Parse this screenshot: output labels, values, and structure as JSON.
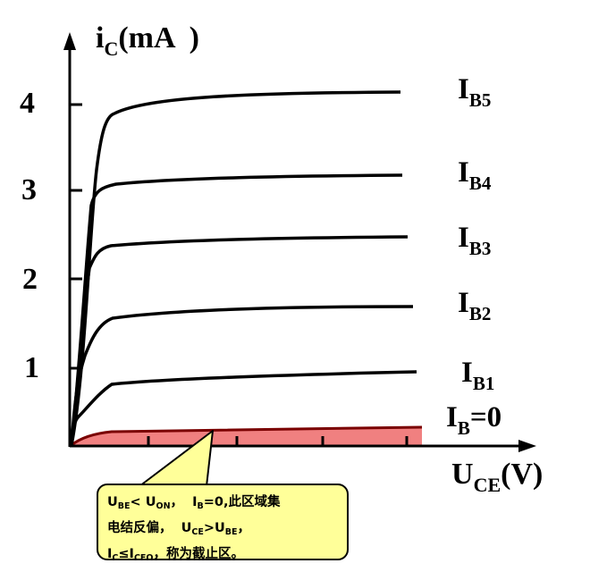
{
  "y_axis": {
    "label_main": "i",
    "label_sub": "C",
    "label_unit": "(mA  )",
    "ticks": [
      "4",
      "3",
      "2",
      "1"
    ],
    "tick_values": [
      4,
      3,
      2,
      1
    ]
  },
  "x_axis": {
    "label_main": "U",
    "label_sub": "CE",
    "label_unit": "(V)"
  },
  "curves": [
    {
      "main": "I",
      "sub": "B5",
      "suffix": "",
      "saturation": 4.1
    },
    {
      "main": "I",
      "sub": "B4",
      "suffix": "",
      "saturation": 3.15
    },
    {
      "main": "I",
      "sub": "B3",
      "suffix": "",
      "saturation": 2.45
    },
    {
      "main": "I",
      "sub": "B2",
      "suffix": "",
      "saturation": 1.7
    },
    {
      "main": "I",
      "sub": "B1",
      "suffix": "",
      "saturation": 0.95
    },
    {
      "main": "I",
      "sub": "B",
      "suffix": "=0",
      "saturation": 0.15
    }
  ],
  "cutoff_region_color": "#f08080",
  "callout": {
    "line1": {
      "a": "U",
      "a_sub": "BE",
      "b": "< U",
      "b_sub": "ON",
      "c": "，  I",
      "c_sub": "B",
      "d": "=0,此区域集"
    },
    "line2": {
      "a": "电结反偏，  U",
      "a_sub": "CE",
      "b": ">U",
      "b_sub": "BE",
      "c": "，"
    },
    "line3": {
      "a": "I",
      "a_sub": "C",
      "b": "≤I",
      "b_sub": "CEO",
      "c": "，称为截止区。"
    },
    "background": "#ffff99"
  }
}
